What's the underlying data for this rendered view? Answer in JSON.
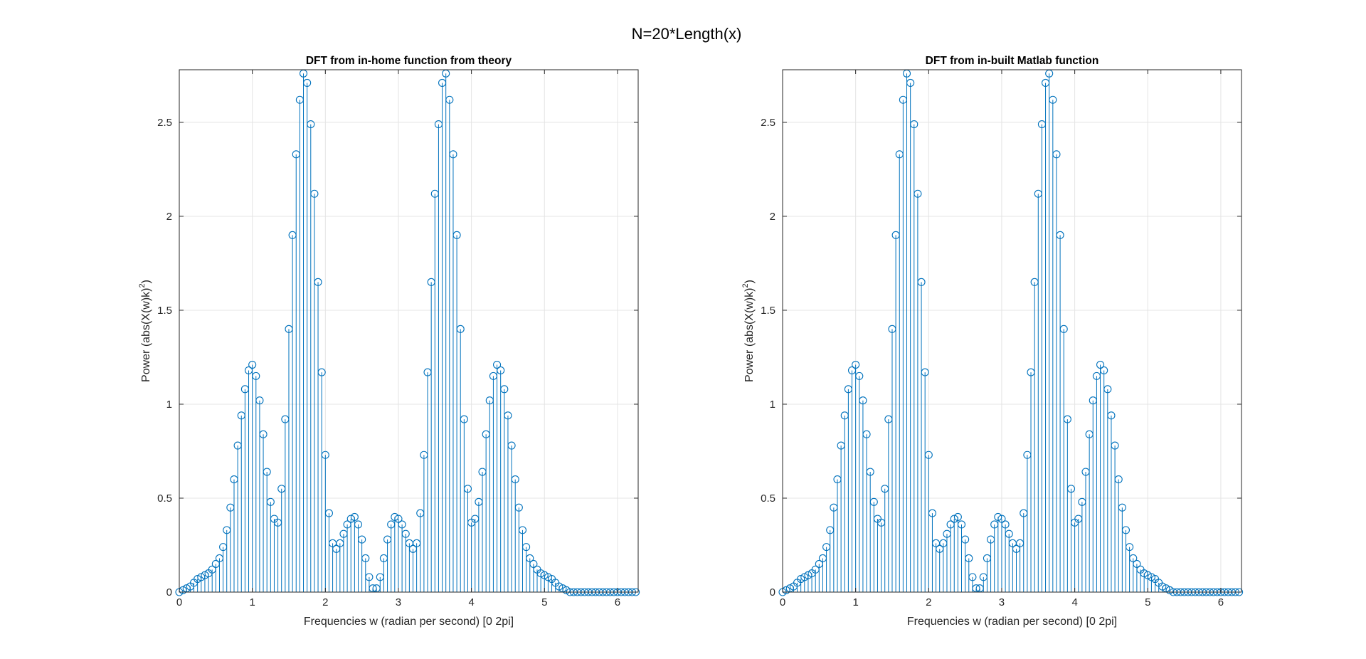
{
  "figure": {
    "suptitle": "N=20*Length(x)",
    "color": "#0072BD"
  },
  "chart_data": [
    {
      "type": "stem",
      "title": "DFT from in-home function from theory",
      "xlabel": "Frequencies w (radian per second) [0 2pi]",
      "ylabel": "Power (abs(X(w)k)2)",
      "xlim": [
        0,
        6.2832
      ],
      "ylim": [
        0,
        2.78
      ],
      "xticks": [
        0,
        1,
        2,
        3,
        4,
        5,
        6
      ],
      "yticks": [
        0,
        0.5,
        1,
        1.5,
        2,
        2.5
      ],
      "ytick_labels": [
        "0",
        "0.5",
        "1",
        "1.5",
        "2",
        "2.5"
      ],
      "grid": true,
      "marker": "circle",
      "series": [
        {
          "x": [
            0.0,
            0.05,
            0.1,
            0.15,
            0.2,
            0.25,
            0.3,
            0.35,
            0.4,
            0.45,
            0.5,
            0.55,
            0.6,
            0.65,
            0.7,
            0.75,
            0.8,
            0.85,
            0.9,
            0.95,
            1.0,
            1.05,
            1.1,
            1.15,
            1.2,
            1.25,
            1.3,
            1.35,
            1.4,
            1.45,
            1.5,
            1.55,
            1.6,
            1.65,
            1.7,
            1.75,
            1.8,
            1.85,
            1.9,
            1.95,
            2.0,
            2.05,
            2.1,
            2.15,
            2.2,
            2.25,
            2.3,
            2.35,
            2.4,
            2.45,
            2.5,
            2.55,
            2.6,
            2.65,
            2.7,
            2.75,
            2.8,
            2.85,
            2.9,
            2.95,
            3.0,
            3.05,
            3.1,
            3.15,
            3.2,
            3.25,
            3.3,
            3.35,
            3.4,
            3.45,
            3.5,
            3.55,
            3.6,
            3.65,
            3.7,
            3.75,
            3.8,
            3.85,
            3.9,
            3.95,
            4.0,
            4.05,
            4.1,
            4.15,
            4.2,
            4.25,
            4.3,
            4.35,
            4.4,
            4.45,
            4.5,
            4.55,
            4.6,
            4.65,
            4.7,
            4.75,
            4.8,
            4.85,
            4.9,
            4.95,
            5.0,
            5.05,
            5.1,
            5.15,
            5.2,
            5.25,
            5.3,
            5.35,
            5.4,
            5.45,
            5.5,
            5.55,
            5.6,
            5.65,
            5.7,
            5.75,
            5.8,
            5.85,
            5.9,
            5.95,
            6.0,
            6.05,
            6.1,
            6.15,
            6.2,
            6.25
          ],
          "y": [
            0.0,
            0.01,
            0.02,
            0.03,
            0.05,
            0.07,
            0.08,
            0.09,
            0.1,
            0.12,
            0.15,
            0.18,
            0.24,
            0.33,
            0.45,
            0.6,
            0.78,
            0.94,
            1.08,
            1.18,
            1.21,
            1.15,
            1.02,
            0.84,
            0.64,
            0.48,
            0.39,
            0.37,
            0.55,
            0.92,
            1.4,
            1.9,
            2.33,
            2.62,
            2.76,
            2.71,
            2.49,
            2.12,
            1.65,
            1.17,
            0.73,
            0.42,
            0.26,
            0.23,
            0.26,
            0.31,
            0.36,
            0.39,
            0.4,
            0.36,
            0.28,
            0.18,
            0.08,
            0.02,
            0.02,
            0.08,
            0.18,
            0.28,
            0.36,
            0.4,
            0.39,
            0.36,
            0.31,
            0.26,
            0.23,
            0.26,
            0.42,
            0.73,
            1.17,
            1.65,
            2.12,
            2.49,
            2.71,
            2.76,
            2.62,
            2.33,
            1.9,
            1.4,
            0.92,
            0.55,
            0.37,
            0.39,
            0.48,
            0.64,
            0.84,
            1.02,
            1.15,
            1.21,
            1.18,
            1.08,
            0.94,
            0.78,
            0.6,
            0.45,
            0.33,
            0.24,
            0.18,
            0.15,
            0.12,
            0.1,
            0.09,
            0.08,
            0.07,
            0.05,
            0.03,
            0.02,
            0.01,
            0.0,
            0.0,
            0.0,
            0.0,
            0.0,
            0.0,
            0.0,
            0.0,
            0.0,
            0.0,
            0.0,
            0.0,
            0.0,
            0.0,
            0.0,
            0.0,
            0.0,
            0.0,
            0.0
          ]
        }
      ]
    },
    {
      "type": "stem",
      "title": "DFT from in-built Matlab function",
      "xlabel": "Frequencies w (radian per second) [0 2pi]",
      "ylabel": "Power (abs(X(w)k)2)",
      "xlim": [
        0,
        6.2832
      ],
      "ylim": [
        0,
        2.78
      ],
      "xticks": [
        0,
        1,
        2,
        3,
        4,
        5,
        6
      ],
      "yticks": [
        0,
        0.5,
        1,
        1.5,
        2,
        2.5
      ],
      "ytick_labels": [
        "0",
        "0.5",
        "1",
        "1.5",
        "2",
        "2.5"
      ],
      "grid": true,
      "marker": "circle",
      "series": [
        {
          "x": [
            0.0,
            0.05,
            0.1,
            0.15,
            0.2,
            0.25,
            0.3,
            0.35,
            0.4,
            0.45,
            0.5,
            0.55,
            0.6,
            0.65,
            0.7,
            0.75,
            0.8,
            0.85,
            0.9,
            0.95,
            1.0,
            1.05,
            1.1,
            1.15,
            1.2,
            1.25,
            1.3,
            1.35,
            1.4,
            1.45,
            1.5,
            1.55,
            1.6,
            1.65,
            1.7,
            1.75,
            1.8,
            1.85,
            1.9,
            1.95,
            2.0,
            2.05,
            2.1,
            2.15,
            2.2,
            2.25,
            2.3,
            2.35,
            2.4,
            2.45,
            2.5,
            2.55,
            2.6,
            2.65,
            2.7,
            2.75,
            2.8,
            2.85,
            2.9,
            2.95,
            3.0,
            3.05,
            3.1,
            3.15,
            3.2,
            3.25,
            3.3,
            3.35,
            3.4,
            3.45,
            3.5,
            3.55,
            3.6,
            3.65,
            3.7,
            3.75,
            3.8,
            3.85,
            3.9,
            3.95,
            4.0,
            4.05,
            4.1,
            4.15,
            4.2,
            4.25,
            4.3,
            4.35,
            4.4,
            4.45,
            4.5,
            4.55,
            4.6,
            4.65,
            4.7,
            4.75,
            4.8,
            4.85,
            4.9,
            4.95,
            5.0,
            5.05,
            5.1,
            5.15,
            5.2,
            5.25,
            5.3,
            5.35,
            5.4,
            5.45,
            5.5,
            5.55,
            5.6,
            5.65,
            5.7,
            5.75,
            5.8,
            5.85,
            5.9,
            5.95,
            6.0,
            6.05,
            6.1,
            6.15,
            6.2,
            6.25
          ],
          "y": [
            0.0,
            0.01,
            0.02,
            0.03,
            0.05,
            0.07,
            0.08,
            0.09,
            0.1,
            0.12,
            0.15,
            0.18,
            0.24,
            0.33,
            0.45,
            0.6,
            0.78,
            0.94,
            1.08,
            1.18,
            1.21,
            1.15,
            1.02,
            0.84,
            0.64,
            0.48,
            0.39,
            0.37,
            0.55,
            0.92,
            1.4,
            1.9,
            2.33,
            2.62,
            2.76,
            2.71,
            2.49,
            2.12,
            1.65,
            1.17,
            0.73,
            0.42,
            0.26,
            0.23,
            0.26,
            0.31,
            0.36,
            0.39,
            0.4,
            0.36,
            0.28,
            0.18,
            0.08,
            0.02,
            0.02,
            0.08,
            0.18,
            0.28,
            0.36,
            0.4,
            0.39,
            0.36,
            0.31,
            0.26,
            0.23,
            0.26,
            0.42,
            0.73,
            1.17,
            1.65,
            2.12,
            2.49,
            2.71,
            2.76,
            2.62,
            2.33,
            1.9,
            1.4,
            0.92,
            0.55,
            0.37,
            0.39,
            0.48,
            0.64,
            0.84,
            1.02,
            1.15,
            1.21,
            1.18,
            1.08,
            0.94,
            0.78,
            0.6,
            0.45,
            0.33,
            0.24,
            0.18,
            0.15,
            0.12,
            0.1,
            0.09,
            0.08,
            0.07,
            0.05,
            0.03,
            0.02,
            0.01,
            0.0,
            0.0,
            0.0,
            0.0,
            0.0,
            0.0,
            0.0,
            0.0,
            0.0,
            0.0,
            0.0,
            0.0,
            0.0,
            0.0,
            0.0,
            0.0,
            0.0,
            0.0,
            0.0
          ]
        }
      ]
    }
  ]
}
